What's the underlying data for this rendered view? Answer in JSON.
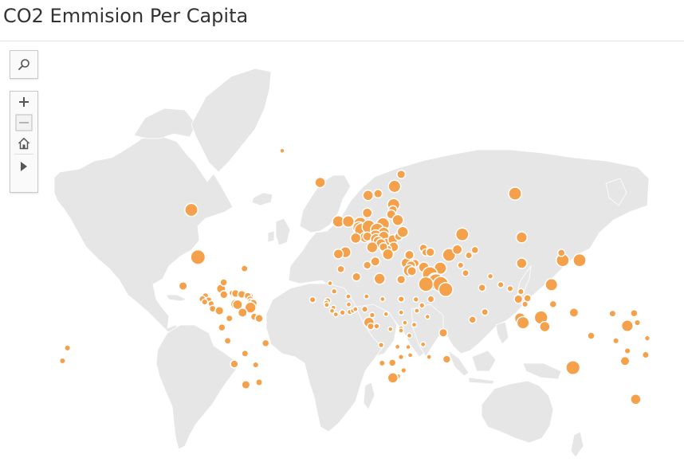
{
  "title": "CO2 Emmision Per Capita",
  "colors": {
    "land": "#e6e6e6",
    "border": "#ffffff",
    "marker": "#f5a04a",
    "marker_stroke": "#ffffff",
    "text": "#333333",
    "rule": "#e3e3e3"
  },
  "controls": [
    "search-icon",
    "zoom-in-icon",
    "zoom-out-icon",
    "home-icon",
    "play-icon"
  ],
  "markers": [
    {
      "place": "Canada",
      "lon": -97,
      "lat": 57,
      "level": 0.75
    },
    {
      "place": "United States",
      "lon": -93,
      "lat": 38,
      "level": 0.9
    },
    {
      "place": "Greenland",
      "lon": -42,
      "lat": 72,
      "level": 0.1
    },
    {
      "place": "Iceland",
      "lon": -19,
      "lat": 65,
      "level": 0.55
    },
    {
      "place": "Mexico",
      "lon": -102,
      "lat": 23,
      "level": 0.4
    },
    {
      "place": "Cuba",
      "lon": -79,
      "lat": 21.5,
      "level": 0.45
    },
    {
      "place": "Bahamas",
      "lon": -77.4,
      "lat": 25,
      "level": 0.3
    },
    {
      "place": "Bermuda",
      "lon": -64.8,
      "lat": 32.3,
      "level": 0.25
    },
    {
      "place": "Jamaica",
      "lon": -77.3,
      "lat": 18.1,
      "level": 0.35
    },
    {
      "place": "Haiti",
      "lon": -72.3,
      "lat": 19,
      "level": 0.2
    },
    {
      "place": "Dominican Republic",
      "lon": -70.2,
      "lat": 18.7,
      "level": 0.35
    },
    {
      "place": "Puerto Rico",
      "lon": -66.5,
      "lat": 18.2,
      "level": 0.35
    },
    {
      "place": "Belize",
      "lon": -88.5,
      "lat": 17.2,
      "level": 0.25
    },
    {
      "place": "Guatemala",
      "lon": -90.3,
      "lat": 15.5,
      "level": 0.25
    },
    {
      "place": "Honduras",
      "lon": -86.5,
      "lat": 14.8,
      "level": 0.25
    },
    {
      "place": "El Salvador",
      "lon": -88.9,
      "lat": 13.8,
      "level": 0.2
    },
    {
      "place": "Nicaragua",
      "lon": -85,
      "lat": 12.8,
      "level": 0.2
    },
    {
      "place": "Costa Rica",
      "lon": -84.1,
      "lat": 9.8,
      "level": 0.25
    },
    {
      "place": "Panama",
      "lon": -80,
      "lat": 8.6,
      "level": 0.4
    },
    {
      "place": "Antigua and Barbuda",
      "lon": -61.8,
      "lat": 17.1,
      "level": 0.35
    },
    {
      "place": "Saint Kitts and Nevis",
      "lon": -62.8,
      "lat": 17.3,
      "level": 0.3
    },
    {
      "place": "Dominica",
      "lon": -61.4,
      "lat": 15.4,
      "level": 0.25
    },
    {
      "place": "Saint Lucia",
      "lon": -61,
      "lat": 13.9,
      "level": 0.25
    },
    {
      "place": "Barbados",
      "lon": -59.5,
      "lat": 13.1,
      "level": 0.35
    },
    {
      "place": "Grenada",
      "lon": -61.7,
      "lat": 12.1,
      "level": 0.25
    },
    {
      "place": "Aruba",
      "lon": -70,
      "lat": 12.5,
      "level": 0.55
    },
    {
      "place": "Curacao",
      "lon": -69,
      "lat": 12.2,
      "level": 0.5
    },
    {
      "place": "Trinidad and Tobago",
      "lon": -61.2,
      "lat": 10.5,
      "level": 0.6
    },
    {
      "place": "Venezuela",
      "lon": -66,
      "lat": 7.5,
      "level": 0.45
    },
    {
      "place": "Colombia",
      "lon": -74,
      "lat": 4,
      "level": 0.25
    },
    {
      "place": "Guyana",
      "lon": -58.9,
      "lat": 5,
      "level": 0.3
    },
    {
      "place": "Suriname",
      "lon": -56,
      "lat": 4,
      "level": 0.35
    },
    {
      "place": "Ecuador",
      "lon": -78.5,
      "lat": -1.5,
      "level": 0.3
    },
    {
      "place": "Peru",
      "lon": -75,
      "lat": -9.5,
      "level": 0.25
    },
    {
      "place": "Brazil",
      "lon": -52,
      "lat": -11,
      "level": 0.3
    },
    {
      "place": "Bolivia",
      "lon": -64.5,
      "lat": -17,
      "level": 0.25
    },
    {
      "place": "Paraguay",
      "lon": -58,
      "lat": -23.5,
      "level": 0.2
    },
    {
      "place": "Chile",
      "lon": -71,
      "lat": -23,
      "level": 0.35
    },
    {
      "place": "Argentina",
      "lon": -64,
      "lat": -34,
      "level": 0.4
    },
    {
      "place": "Uruguay",
      "lon": -56,
      "lat": -32.8,
      "level": 0.25
    },
    {
      "place": "Norway",
      "lon": 10,
      "lat": 61.5,
      "level": 0.55
    },
    {
      "place": "Sweden",
      "lon": 16,
      "lat": 62,
      "level": 0.4
    },
    {
      "place": "Finland",
      "lon": 26,
      "lat": 64,
      "level": 0.7
    },
    {
      "place": "Russia (Karelia)",
      "lon": 30,
      "lat": 67,
      "level": 0.4
    },
    {
      "place": "Estonia",
      "lon": 25.5,
      "lat": 58.7,
      "level": 0.7
    },
    {
      "place": "Latvia",
      "lon": 25,
      "lat": 57,
      "level": 0.4
    },
    {
      "place": "Lithuania",
      "lon": 24,
      "lat": 55.5,
      "level": 0.45
    },
    {
      "place": "Belarus",
      "lon": 28,
      "lat": 53.5,
      "level": 0.6
    },
    {
      "place": "Denmark",
      "lon": 9.5,
      "lat": 56,
      "level": 0.5
    },
    {
      "place": "Ireland",
      "lon": -8,
      "lat": 53,
      "level": 0.65
    },
    {
      "place": "United Kingdom",
      "lon": -2,
      "lat": 53,
      "level": 0.65
    },
    {
      "place": "Netherlands",
      "lon": 5.3,
      "lat": 52.2,
      "level": 0.75
    },
    {
      "place": "Belgium",
      "lon": 4.5,
      "lat": 50.6,
      "level": 0.7
    },
    {
      "place": "Luxembourg",
      "lon": 6.1,
      "lat": 49.7,
      "level": 0.85
    },
    {
      "place": "Germany",
      "lon": 10.4,
      "lat": 51,
      "level": 0.8
    },
    {
      "place": "Poland",
      "lon": 19,
      "lat": 52,
      "level": 0.75
    },
    {
      "place": "Czechia",
      "lon": 15.5,
      "lat": 49.8,
      "level": 0.8
    },
    {
      "place": "Slovakia",
      "lon": 19.5,
      "lat": 48.7,
      "level": 0.6
    },
    {
      "place": "Austria",
      "lon": 14.5,
      "lat": 47.5,
      "level": 0.65
    },
    {
      "place": "Switzerland",
      "lon": 8.2,
      "lat": 46.8,
      "level": 0.55
    },
    {
      "place": "Liechtenstein",
      "lon": 9.55,
      "lat": 47.15,
      "level": 0.45
    },
    {
      "place": "France",
      "lon": 2.5,
      "lat": 46.5,
      "level": 0.55
    },
    {
      "place": "Slovenia",
      "lon": 14.8,
      "lat": 46.1,
      "level": 0.6
    },
    {
      "place": "Hungary",
      "lon": 19.5,
      "lat": 47.2,
      "level": 0.55
    },
    {
      "place": "Croatia",
      "lon": 16,
      "lat": 45.2,
      "level": 0.5
    },
    {
      "place": "Serbia",
      "lon": 21,
      "lat": 44,
      "level": 0.6
    },
    {
      "place": "Bosnia and Herzegovina",
      "lon": 17.8,
      "lat": 44.2,
      "level": 0.5
    },
    {
      "place": "Romania",
      "lon": 25,
      "lat": 45.9,
      "level": 0.5
    },
    {
      "place": "Moldova",
      "lon": 28.5,
      "lat": 47.2,
      "level": 0.35
    },
    {
      "place": "Ukraine",
      "lon": 31,
      "lat": 49,
      "level": 0.6
    },
    {
      "place": "Bulgaria",
      "lon": 25.5,
      "lat": 42.7,
      "level": 0.5
    },
    {
      "place": "North Macedonia",
      "lon": 21.7,
      "lat": 41.6,
      "level": 0.4
    },
    {
      "place": "Albania",
      "lon": 20,
      "lat": 41,
      "level": 0.3
    },
    {
      "place": "Montenegro",
      "lon": 19.3,
      "lat": 42.7,
      "level": 0.4
    },
    {
      "place": "Italy",
      "lon": 12.5,
      "lat": 42.5,
      "level": 0.6
    },
    {
      "place": "Spain",
      "lon": -3.7,
      "lat": 40.3,
      "level": 0.6
    },
    {
      "place": "Portugal",
      "lon": -8,
      "lat": 39.5,
      "level": 0.5
    },
    {
      "place": "Greece",
      "lon": 22,
      "lat": 39.3,
      "level": 0.6
    },
    {
      "place": "Malta",
      "lon": 14.4,
      "lat": 35.9,
      "level": 0.45
    },
    {
      "place": "Cyprus",
      "lon": 33.2,
      "lat": 35.1,
      "level": 0.55
    },
    {
      "place": "Turkey",
      "lon": 35,
      "lat": 39,
      "level": 0.45
    },
    {
      "place": "Georgia",
      "lon": 43.5,
      "lat": 42.2,
      "level": 0.35
    },
    {
      "place": "Armenia",
      "lon": 44.8,
      "lat": 40.2,
      "level": 0.3
    },
    {
      "place": "Azerbaijan",
      "lon": 47.7,
      "lat": 40.3,
      "level": 0.4
    },
    {
      "place": "Russia",
      "lon": 99,
      "lat": 62,
      "level": 0.75
    },
    {
      "place": "Kazakhstan",
      "lon": 67,
      "lat": 48,
      "level": 0.75
    },
    {
      "place": "Turkmenistan",
      "lon": 59,
      "lat": 39,
      "level": 0.75
    },
    {
      "place": "Uzbekistan",
      "lon": 64,
      "lat": 41.5,
      "level": 0.5
    },
    {
      "place": "Kyrgyzstan",
      "lon": 74.7,
      "lat": 41.3,
      "level": 0.3
    },
    {
      "place": "Tajikistan",
      "lon": 71,
      "lat": 38.8,
      "level": 0.25
    },
    {
      "place": "Mongolia",
      "lon": 103,
      "lat": 46.8,
      "level": 0.6
    },
    {
      "place": "China",
      "lon": 103,
      "lat": 35,
      "level": 0.55
    },
    {
      "place": "South Korea",
      "lon": 127.8,
      "lat": 36.5,
      "level": 0.75
    },
    {
      "place": "Japan",
      "lon": 138,
      "lat": 36.5,
      "level": 0.75
    },
    {
      "place": "North Korea",
      "lon": 127,
      "lat": 40,
      "level": 0.3
    },
    {
      "place": "Syria",
      "lon": 38.5,
      "lat": 35,
      "level": 0.35
    },
    {
      "place": "Lebanon",
      "lon": 35.9,
      "lat": 33.9,
      "level": 0.45
    },
    {
      "place": "Israel",
      "lon": 34.9,
      "lat": 31.3,
      "level": 0.65
    },
    {
      "place": "Jordan",
      "lon": 36.5,
      "lat": 31,
      "level": 0.45
    },
    {
      "place": "Iraq",
      "lon": 43.7,
      "lat": 33,
      "level": 0.55
    },
    {
      "place": "Iran",
      "lon": 53.7,
      "lat": 32.5,
      "level": 0.7
    },
    {
      "place": "Kuwait",
      "lon": 47.5,
      "lat": 29.3,
      "level": 0.95
    },
    {
      "place": "Bahrain",
      "lon": 50.6,
      "lat": 26,
      "level": 0.95
    },
    {
      "place": "Qatar",
      "lon": 51.2,
      "lat": 25.3,
      "level": 1.0
    },
    {
      "place": "Saudi Arabia",
      "lon": 45,
      "lat": 24,
      "level": 0.9
    },
    {
      "place": "United Arab Emirates",
      "lon": 54,
      "lat": 24,
      "level": 0.95
    },
    {
      "place": "Oman",
      "lon": 57,
      "lat": 21,
      "level": 0.85
    },
    {
      "place": "Yemen",
      "lon": 48,
      "lat": 15.5,
      "level": 0.25
    },
    {
      "place": "Afghanistan",
      "lon": 66,
      "lat": 34,
      "level": 0.2
    },
    {
      "place": "Pakistan",
      "lon": 69,
      "lat": 30,
      "level": 0.25
    },
    {
      "place": "India",
      "lon": 79,
      "lat": 22,
      "level": 0.3
    },
    {
      "place": "Nepal",
      "lon": 84,
      "lat": 28.3,
      "level": 0.15
    },
    {
      "place": "Bangladesh",
      "lon": 90.3,
      "lat": 23.7,
      "level": 0.2
    },
    {
      "place": "Sri Lanka",
      "lon": 80.7,
      "lat": 7.8,
      "level": 0.25
    },
    {
      "place": "Maldives",
      "lon": 73.2,
      "lat": 3.2,
      "level": 0.3
    },
    {
      "place": "Myanmar",
      "lon": 96,
      "lat": 21.5,
      "level": 0.2
    },
    {
      "place": "Laos",
      "lon": 102.5,
      "lat": 19.8,
      "level": 0.2
    },
    {
      "place": "Thailand",
      "lon": 101,
      "lat": 15.5,
      "level": 0.4
    },
    {
      "place": "Vietnam",
      "lon": 106.5,
      "lat": 16,
      "level": 0.3
    },
    {
      "place": "Cambodia",
      "lon": 105,
      "lat": 12.5,
      "level": 0.2
    },
    {
      "place": "Philippines",
      "lon": 122,
      "lat": 12.5,
      "level": 0.3
    },
    {
      "place": "Taiwan",
      "lon": 121,
      "lat": 23.7,
      "level": 0.7
    },
    {
      "place": "Malaysia (Peninsular)",
      "lon": 102,
      "lat": 4,
      "level": 0.6
    },
    {
      "place": "Singapore",
      "lon": 103.8,
      "lat": 1.35,
      "level": 0.7
    },
    {
      "place": "Brunei",
      "lon": 114.7,
      "lat": 4.5,
      "level": 0.8
    },
    {
      "place": "Indonesia",
      "lon": 117,
      "lat": -1,
      "level": 0.55
    },
    {
      "place": "Papua New Guinea",
      "lon": 145,
      "lat": -6.5,
      "level": 0.3
    },
    {
      "place": "Palau",
      "lon": 134.6,
      "lat": 7.5,
      "level": 0.45
    },
    {
      "place": "Micronesia",
      "lon": 158,
      "lat": 6.9,
      "level": 0.25
    },
    {
      "place": "Marshall Islands",
      "lon": 171,
      "lat": 7.1,
      "level": 0.3
    },
    {
      "place": "Nauru",
      "lon": 166.9,
      "lat": -0.5,
      "level": 0.65
    },
    {
      "place": "Kiribati",
      "lon": 173,
      "lat": 1.4,
      "level": 0.2
    },
    {
      "place": "Solomon Islands",
      "lon": 160,
      "lat": -9.5,
      "level": 0.2
    },
    {
      "place": "Vanuatu",
      "lon": 167,
      "lat": -15.5,
      "level": 0.2
    },
    {
      "place": "Fiji",
      "lon": 178,
      "lat": -17.8,
      "level": 0.25
    },
    {
      "place": "New Caledonia",
      "lon": 165.5,
      "lat": -21.3,
      "level": 0.45
    },
    {
      "place": "Samoa",
      "lon": -172,
      "lat": -13.8,
      "level": 0.2
    },
    {
      "place": "Tonga",
      "lon": -175,
      "lat": -21.2,
      "level": 0.2
    },
    {
      "place": "Tuvalu",
      "lon": 179,
      "lat": -8,
      "level": 0.15
    },
    {
      "place": "Australia",
      "lon": 134,
      "lat": -25,
      "level": 0.85
    },
    {
      "place": "New Zealand",
      "lon": 172,
      "lat": -41,
      "level": 0.55
    },
    {
      "place": "Morocco",
      "lon": -6.5,
      "lat": 32,
      "level": 0.3
    },
    {
      "place": "Algeria",
      "lon": 3,
      "lat": 28,
      "level": 0.4
    },
    {
      "place": "Tunisia",
      "lon": 9.5,
      "lat": 34,
      "level": 0.35
    },
    {
      "place": "Libya",
      "lon": 17,
      "lat": 27,
      "level": 0.6
    },
    {
      "place": "Egypt",
      "lon": 30,
      "lat": 26.5,
      "level": 0.4
    },
    {
      "place": "Western Sahara",
      "lon": -13,
      "lat": 24.5,
      "level": 0.1
    },
    {
      "place": "Cape Verde",
      "lon": -23.6,
      "lat": 15.1,
      "level": 0.2
    },
    {
      "place": "Mauritania",
      "lon": -10.5,
      "lat": 20,
      "level": 0.15
    },
    {
      "place": "Mali",
      "lon": -2,
      "lat": 17,
      "level": 0.12
    },
    {
      "place": "Niger",
      "lon": 9,
      "lat": 17,
      "level": 0.12
    },
    {
      "place": "Chad",
      "lon": 18.7,
      "lat": 15.5,
      "level": 0.12
    },
    {
      "place": "Sudan",
      "lon": 30,
      "lat": 15.5,
      "level": 0.2
    },
    {
      "place": "Eritrea",
      "lon": 39,
      "lat": 15.3,
      "level": 0.15
    },
    {
      "place": "Senegal",
      "lon": -14.5,
      "lat": 14.5,
      "level": 0.2
    },
    {
      "place": "Gambia",
      "lon": -15.3,
      "lat": 13.4,
      "level": 0.12
    },
    {
      "place": "Guinea-Bissau",
      "lon": -15,
      "lat": 12,
      "level": 0.12
    },
    {
      "place": "Guinea",
      "lon": -11,
      "lat": 10.4,
      "level": 0.12
    },
    {
      "place": "Sierra Leone",
      "lon": -11.8,
      "lat": 8.5,
      "level": 0.12
    },
    {
      "place": "Liberia",
      "lon": -9.5,
      "lat": 6.4,
      "level": 0.12
    },
    {
      "place": "Cote d'Ivoire",
      "lon": -5.5,
      "lat": 7.5,
      "level": 0.15
    },
    {
      "place": "Burkina Faso",
      "lon": -1.7,
      "lat": 12.3,
      "level": 0.12
    },
    {
      "place": "Ghana",
      "lon": -1,
      "lat": 7.9,
      "level": 0.15
    },
    {
      "place": "Togo",
      "lon": 0.8,
      "lat": 8.6,
      "level": 0.12
    },
    {
      "place": "Benin",
      "lon": 2.3,
      "lat": 9.5,
      "level": 0.12
    },
    {
      "place": "Nigeria",
      "lon": 8,
      "lat": 9.5,
      "level": 0.2
    },
    {
      "place": "Cameroon",
      "lon": 12.5,
      "lat": 6,
      "level": 0.15
    },
    {
      "place": "Central African Republic",
      "lon": 20.9,
      "lat": 6.6,
      "level": 0.1
    },
    {
      "place": "South Sudan",
      "lon": 30,
      "lat": 7.5,
      "level": 0.12
    },
    {
      "place": "Ethiopia",
      "lon": 39.5,
      "lat": 8.6,
      "level": 0.12
    },
    {
      "place": "Djibouti",
      "lon": 42.6,
      "lat": 11.8,
      "level": 0.15
    },
    {
      "place": "Somalia",
      "lon": 46,
      "lat": 5,
      "level": 0.1
    },
    {
      "place": "Equatorial Guinea",
      "lon": 10.5,
      "lat": 1.6,
      "level": 0.55
    },
    {
      "place": "Gabon",
      "lon": 11.6,
      "lat": -0.8,
      "level": 0.25
    },
    {
      "place": "Congo",
      "lon": 15.2,
      "lat": -0.7,
      "level": 0.15
    },
    {
      "place": "DR Congo",
      "lon": 23.5,
      "lat": -2.5,
      "level": 0.1
    },
    {
      "place": "Uganda",
      "lon": 32.3,
      "lat": 1.4,
      "level": 0.1
    },
    {
      "place": "Kenya",
      "lon": 37.9,
      "lat": 0.2,
      "level": 0.12
    },
    {
      "place": "Rwanda",
      "lon": 29.9,
      "lat": -2,
      "level": 0.1
    },
    {
      "place": "Burundi",
      "lon": 29.9,
      "lat": -3.4,
      "level": 0.1
    },
    {
      "place": "Tanzania",
      "lon": 35,
      "lat": -6.4,
      "level": 0.12
    },
    {
      "place": "Seychelles",
      "lon": 55.5,
      "lat": -4.7,
      "level": 0.4
    },
    {
      "place": "Comoros",
      "lon": 43.3,
      "lat": -11.7,
      "level": 0.12
    },
    {
      "place": "Angola",
      "lon": 17.9,
      "lat": -12,
      "level": 0.15
    },
    {
      "place": "Zambia",
      "lon": 27.8,
      "lat": -13.1,
      "level": 0.12
    },
    {
      "place": "Malawi",
      "lon": 34.3,
      "lat": -13.2,
      "level": 0.1
    },
    {
      "place": "Mozambique",
      "lon": 35.5,
      "lat": -18,
      "level": 0.12
    },
    {
      "place": "Madagascar",
      "lon": 46.9,
      "lat": -19,
      "level": 0.12
    },
    {
      "place": "Mauritius",
      "lon": 57.6,
      "lat": -20.3,
      "level": 0.35
    },
    {
      "place": "Zimbabwe",
      "lon": 29.9,
      "lat": -19,
      "level": 0.15
    },
    {
      "place": "Namibia",
      "lon": 18.5,
      "lat": -22.5,
      "level": 0.2
    },
    {
      "place": "Botswana",
      "lon": 24.7,
      "lat": -22.3,
      "level": 0.3
    },
    {
      "place": "Eswatini",
      "lon": 31.5,
      "lat": -26.5,
      "level": 0.15
    },
    {
      "place": "Lesotho",
      "lon": 28.2,
      "lat": -29.6,
      "level": 0.12
    },
    {
      "place": "South Africa",
      "lon": 25,
      "lat": -30.5,
      "level": 0.55
    }
  ]
}
